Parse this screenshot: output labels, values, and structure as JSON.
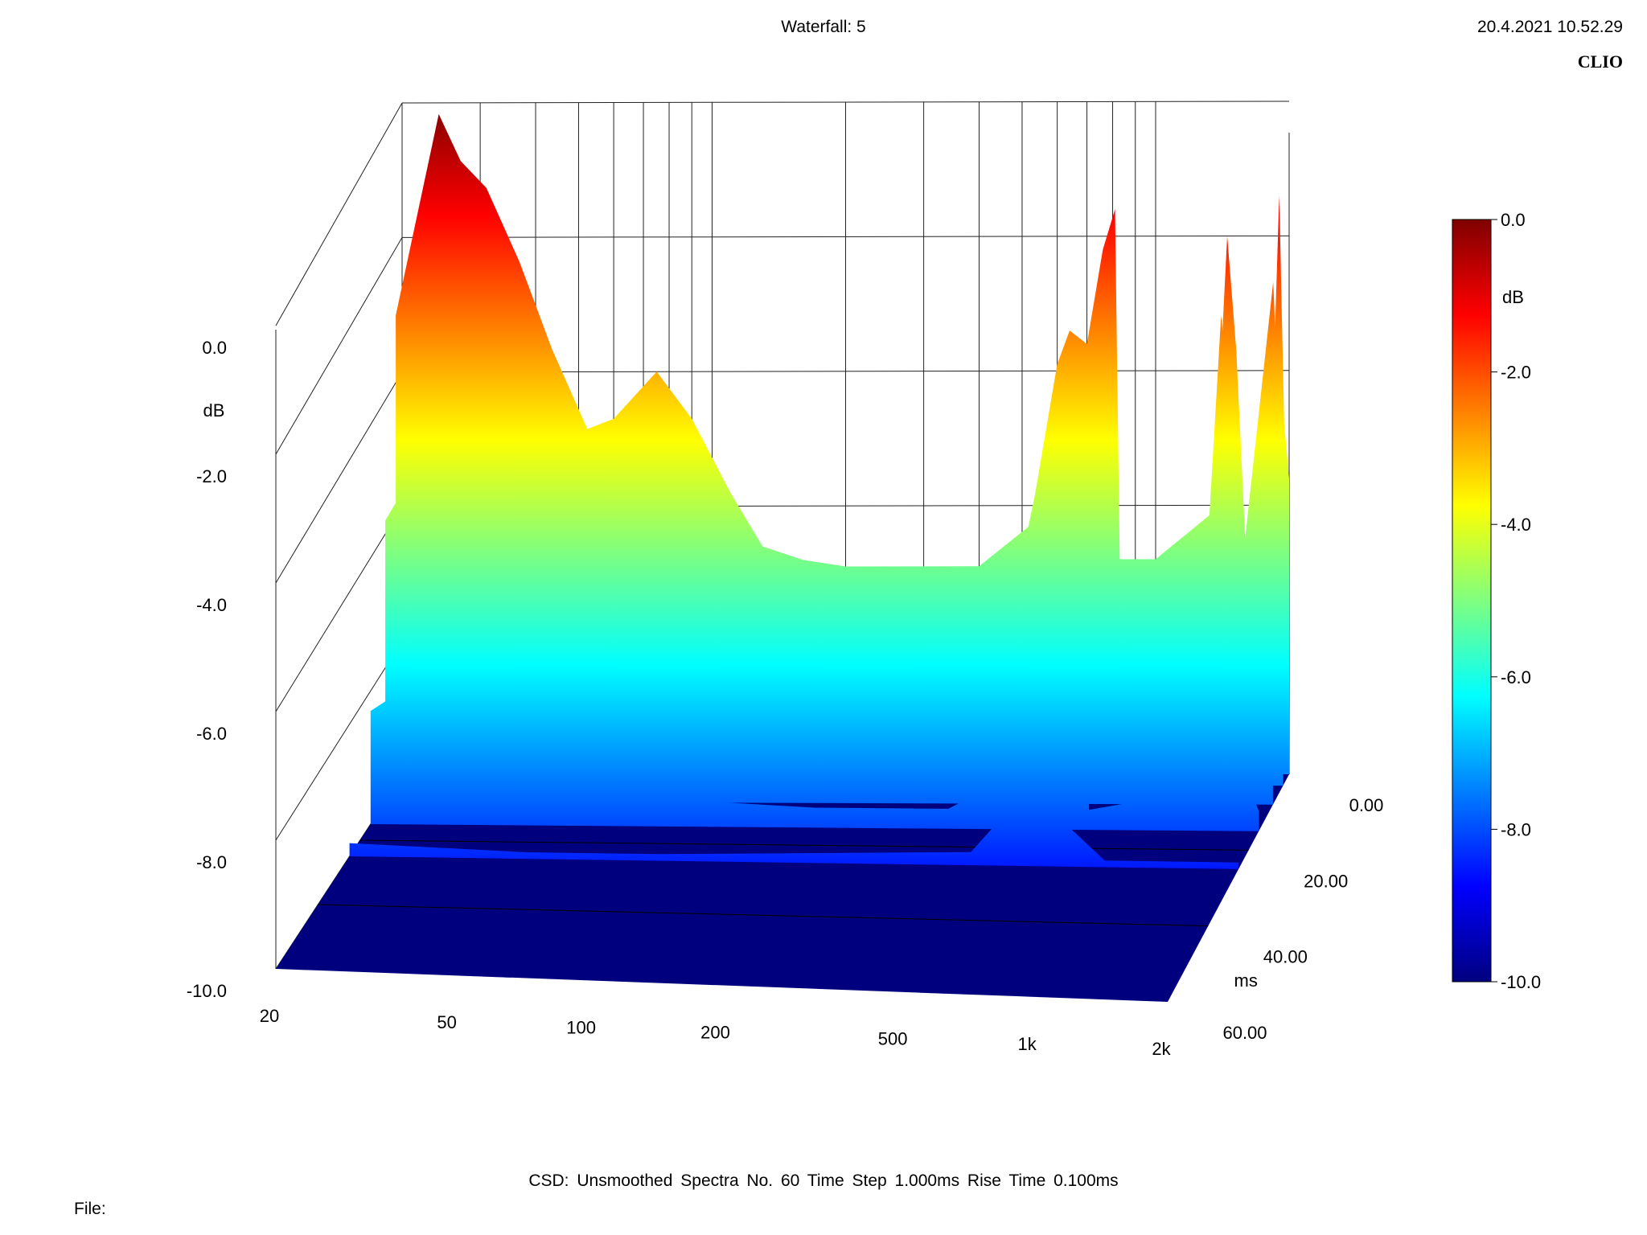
{
  "header": {
    "title": "Waterfall: 5",
    "timestamp": "20.4.2021 10.52.29",
    "brand": "CLIO"
  },
  "footer": {
    "summary": "CSD:   Unsmoothed   Spectra No. 60   Time Step 1.000ms   Rise Time 0.100ms",
    "file_label": "File:"
  },
  "chart_data": {
    "type": "waterfall",
    "title": "Waterfall: 5",
    "z_axis": {
      "unit_label": "dB",
      "ticks": [
        "0.0",
        "-2.0",
        "-4.0",
        "-6.0",
        "-8.0",
        "-10.0"
      ],
      "zlim": [
        -10,
        0
      ]
    },
    "x_axis": {
      "scale": "log",
      "ticks": [
        "20",
        "50",
        "100",
        "200",
        "500",
        "1k",
        "2k"
      ],
      "tick_values": [
        20,
        50,
        100,
        200,
        500,
        1000,
        2000
      ],
      "xlim": [
        20,
        2000
      ]
    },
    "y_axis": {
      "unit_label": "ms",
      "ticks": [
        "0.00",
        "20.00",
        "40.00",
        "60.00"
      ],
      "tick_values": [
        0,
        20,
        40,
        60
      ],
      "ylim": [
        0,
        60
      ]
    },
    "colorbar": {
      "unit_label": "dB",
      "ticks": [
        "0.0",
        "-2.0",
        "-4.0",
        "-6.0",
        "-8.0",
        "-10.0"
      ],
      "range": [
        -10,
        0
      ],
      "colors": [
        "#00007f",
        "#0000ff",
        "#007fff",
        "#00ffff",
        "#7fff7f",
        "#ffff00",
        "#ff7f00",
        "#ff0000",
        "#7f0000"
      ]
    },
    "series": [
      {
        "time_ms": 0,
        "points": [
          [
            20,
            -4.2
          ],
          [
            23,
            -2.8
          ],
          [
            26,
            -2.3
          ],
          [
            30,
            -2.6
          ],
          [
            35,
            -3.0
          ],
          [
            42,
            -4.6
          ],
          [
            50,
            -4.9
          ],
          [
            60,
            -4.7
          ],
          [
            75,
            -4.0
          ],
          [
            90,
            -4.7
          ],
          [
            110,
            -5.8
          ],
          [
            130,
            -6.6
          ],
          [
            160,
            -6.8
          ],
          [
            200,
            -6.9
          ],
          [
            300,
            -6.9
          ],
          [
            400,
            -6.9
          ],
          [
            520,
            -6.3
          ],
          [
            600,
            -3.9
          ],
          [
            640,
            -3.4
          ],
          [
            700,
            -3.6
          ],
          [
            760,
            -2.2
          ],
          [
            810,
            -1.6
          ],
          [
            830,
            -6.8
          ],
          [
            1000,
            -6.8
          ],
          [
            1350,
            -6.1
          ],
          [
            1450,
            -2.0
          ],
          [
            1520,
            -3.7
          ],
          [
            1600,
            -6.8
          ],
          [
            1800,
            -6.3
          ],
          [
            1900,
            -1.4
          ],
          [
            1950,
            -4.8
          ],
          [
            2000,
            -5.6
          ]
        ]
      },
      {
        "time_ms": 3,
        "points": [
          [
            20,
            -3.0
          ],
          [
            25,
            0.0
          ],
          [
            28,
            -0.7
          ],
          [
            32,
            -1.1
          ],
          [
            38,
            -2.2
          ],
          [
            45,
            -3.5
          ],
          [
            55,
            -4.8
          ],
          [
            70,
            -5.4
          ],
          [
            90,
            -6.2
          ],
          [
            110,
            -6.7
          ],
          [
            150,
            -6.9
          ],
          [
            200,
            -7.0
          ],
          [
            400,
            -7.0
          ],
          [
            520,
            -6.5
          ],
          [
            600,
            -4.5
          ],
          [
            640,
            -4.0
          ],
          [
            700,
            -4.2
          ],
          [
            760,
            -3.0
          ],
          [
            810,
            -2.4
          ],
          [
            830,
            -7.0
          ],
          [
            1350,
            -6.5
          ],
          [
            1450,
            -3.0
          ],
          [
            1520,
            -4.4
          ],
          [
            1600,
            -7.0
          ],
          [
            1900,
            -2.5
          ],
          [
            2000,
            -6.0
          ]
        ]
      },
      {
        "time_ms": 8,
        "points": [
          [
            20,
            -5.8
          ],
          [
            26,
            -4.5
          ],
          [
            32,
            -5.2
          ],
          [
            40,
            -5.7
          ],
          [
            50,
            -6.5
          ],
          [
            70,
            -7.4
          ],
          [
            100,
            -7.9
          ],
          [
            200,
            -8.0
          ],
          [
            400,
            -8.0
          ],
          [
            520,
            -7.6
          ],
          [
            600,
            -5.8
          ],
          [
            650,
            -5.6
          ],
          [
            760,
            -5.2
          ],
          [
            810,
            -4.8
          ],
          [
            830,
            -8.0
          ],
          [
            1350,
            -7.7
          ],
          [
            1450,
            -5.6
          ],
          [
            1600,
            -8.0
          ],
          [
            1900,
            -5.3
          ],
          [
            2000,
            -7.7
          ]
        ]
      },
      {
        "time_ms": 15,
        "points": [
          [
            20,
            -8.3
          ],
          [
            26,
            -7.8
          ],
          [
            32,
            -8.2
          ],
          [
            45,
            -8.7
          ],
          [
            70,
            -9.3
          ],
          [
            100,
            -9.6
          ],
          [
            200,
            -9.7
          ],
          [
            400,
            -9.7
          ],
          [
            520,
            -9.3
          ],
          [
            600,
            -7.6
          ],
          [
            760,
            -7.7
          ],
          [
            810,
            -7.4
          ],
          [
            830,
            -9.7
          ],
          [
            1450,
            -9.4
          ],
          [
            1900,
            -9.3
          ],
          [
            2000,
            -9.7
          ]
        ]
      },
      {
        "time_ms": 25,
        "points": [
          [
            20,
            -9.8
          ],
          [
            50,
            -9.9
          ],
          [
            100,
            -9.9
          ],
          [
            500,
            -9.8
          ],
          [
            600,
            -9.2
          ],
          [
            800,
            -9.3
          ],
          [
            1000,
            -9.9
          ],
          [
            2000,
            -9.9
          ]
        ]
      },
      {
        "time_ms": 60,
        "points": [
          [
            20,
            -10.0
          ],
          [
            100,
            -10.0
          ],
          [
            1000,
            -10.0
          ],
          [
            2000,
            -10.0
          ]
        ]
      }
    ]
  }
}
